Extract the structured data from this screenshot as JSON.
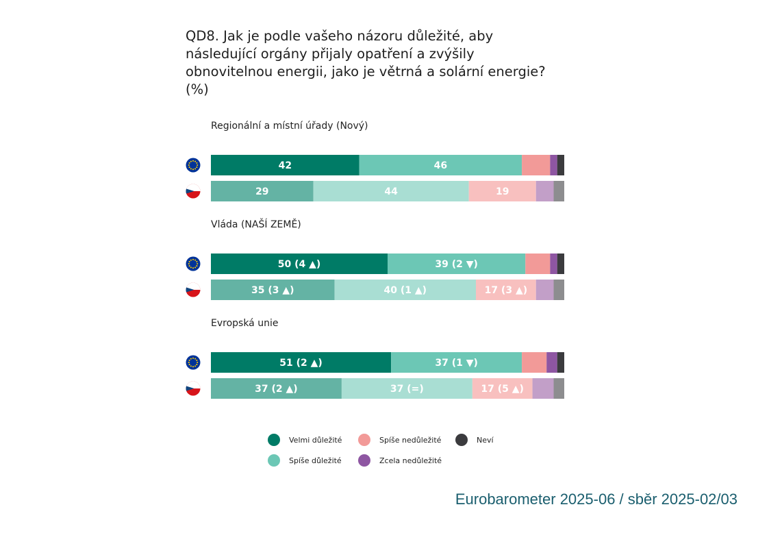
{
  "title_lines": [
    "QD8. Jak je podle vašeho názoru důležité, aby",
    "následující orgány přijaly opatření a zvýšily",
    "obnovitelnou energii, jako je větrná a solární energie?",
    "(%)"
  ],
  "source": "Eurobarometer 2025-06 / sběr 2025-02/03",
  "colors": {
    "eu": [
      "#007b66",
      "#6cc7b5",
      "#f29a98",
      "#8e56a2",
      "#3b3b3e"
    ],
    "cz": [
      "#64b3a4",
      "#a9ded3",
      "#f8c0bf",
      "#c29fc8",
      "#8d8d8f"
    ],
    "flag_eu_bg": "#003399",
    "flag_eu_star": "#ffcc00",
    "flag_cz_white": "#ffffff",
    "flag_cz_red": "#d7141a",
    "flag_cz_blue": "#11457e"
  },
  "chart_data": {
    "type": "bar",
    "orientation": "horizontal",
    "stacked": true,
    "xlim": [
      0,
      100
    ],
    "series_names": [
      "Velmi důležité",
      "Spíše důležité",
      "Spíše nedůležité",
      "Zcela nedůležité",
      "Neví"
    ],
    "groups": [
      {
        "label": "Regionální a místní úřady (Nový)",
        "rows": [
          {
            "entity": "EU",
            "values": [
              42,
              46,
              8,
              2,
              2
            ],
            "labels": [
              "42",
              "46",
              "",
              "",
              ""
            ]
          },
          {
            "entity": "CZ",
            "values": [
              29,
              44,
              19,
              5,
              3
            ],
            "labels": [
              "29",
              "44",
              "19",
              "",
              ""
            ]
          }
        ]
      },
      {
        "label": "Vláda (NAŠÍ ZEMĚ)",
        "rows": [
          {
            "entity": "EU",
            "values": [
              50,
              39,
              7,
              2,
              2
            ],
            "labels": [
              "50 (4 ▲)",
              "39 (2 ▼)",
              "",
              "",
              ""
            ]
          },
          {
            "entity": "CZ",
            "values": [
              35,
              40,
              17,
              5,
              3
            ],
            "labels": [
              "35 (3 ▲)",
              "40 (1 ▲)",
              "17 (3 ▲)",
              "",
              ""
            ]
          }
        ]
      },
      {
        "label": "Evropská unie",
        "rows": [
          {
            "entity": "EU",
            "values": [
              51,
              37,
              7,
              3,
              2
            ],
            "labels": [
              "51 (2 ▲)",
              "37 (1 ▼)",
              "",
              "",
              ""
            ]
          },
          {
            "entity": "CZ",
            "values": [
              37,
              37,
              17,
              6,
              3
            ],
            "labels": [
              "37 (2 ▲)",
              "37 (=)",
              "17 (5 ▲)",
              "",
              ""
            ]
          }
        ]
      }
    ],
    "legend": [
      {
        "label": "Velmi důležité",
        "series": 0
      },
      {
        "label": "Spíše nedůležité",
        "series": 2
      },
      {
        "label": "Neví",
        "series": 4
      },
      {
        "label": "Spíše důležité",
        "series": 1
      },
      {
        "label": "Zcela nedůležité",
        "series": 3
      }
    ]
  }
}
